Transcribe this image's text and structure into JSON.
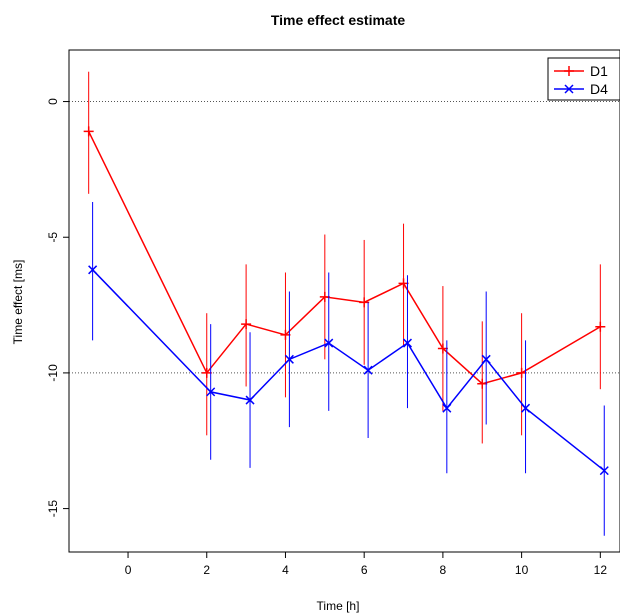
{
  "chart_data": {
    "type": "line",
    "title": "Time effect estimate",
    "xlabel": "Time [h]",
    "ylabel": "Time effect [ms]",
    "xlim": [
      -1.5,
      12.5
    ],
    "ylim": [
      -16.6,
      1.9
    ],
    "x_ticks": [
      0,
      2,
      4,
      6,
      8,
      10,
      12
    ],
    "y_ticks": [
      0,
      -5,
      -10,
      -15
    ],
    "reference_lines": [
      0,
      -10
    ],
    "grid": false,
    "legend_position": "top-right",
    "series": [
      {
        "name": "D1",
        "color": "#ff0000",
        "marker": "plus",
        "x": [
          -1,
          2,
          3,
          4,
          5,
          6,
          7,
          8,
          9,
          10,
          12
        ],
        "y": [
          -1.1,
          -10.0,
          -8.2,
          -8.6,
          -7.2,
          -7.4,
          -6.7,
          -9.1,
          -10.4,
          -10.0,
          -8.3
        ],
        "lower": [
          -3.4,
          -12.3,
          -10.5,
          -10.9,
          -9.5,
          -9.7,
          -9.0,
          -11.4,
          -12.6,
          -12.3,
          -10.6
        ],
        "upper": [
          1.1,
          -7.8,
          -6.0,
          -6.3,
          -4.9,
          -5.1,
          -4.5,
          -6.8,
          -8.1,
          -7.8,
          -6.0
        ]
      },
      {
        "name": "D4",
        "color": "#0000ff",
        "marker": "cross",
        "x": [
          -0.9,
          2.1,
          3.1,
          4.1,
          5.1,
          6.1,
          7.1,
          8.1,
          9.1,
          10.1,
          12.1
        ],
        "y": [
          -6.2,
          -10.7,
          -11.0,
          -9.5,
          -8.9,
          -9.9,
          -8.9,
          -11.3,
          -9.5,
          -11.3,
          -13.6
        ],
        "lower": [
          -8.8,
          -13.2,
          -13.5,
          -12.0,
          -11.4,
          -12.4,
          -11.3,
          -13.7,
          -11.9,
          -13.7,
          -16.0
        ],
        "upper": [
          -3.7,
          -8.2,
          -8.5,
          -7.0,
          -6.3,
          -7.4,
          -6.4,
          -8.8,
          -7.0,
          -8.8,
          -11.2
        ]
      }
    ]
  }
}
